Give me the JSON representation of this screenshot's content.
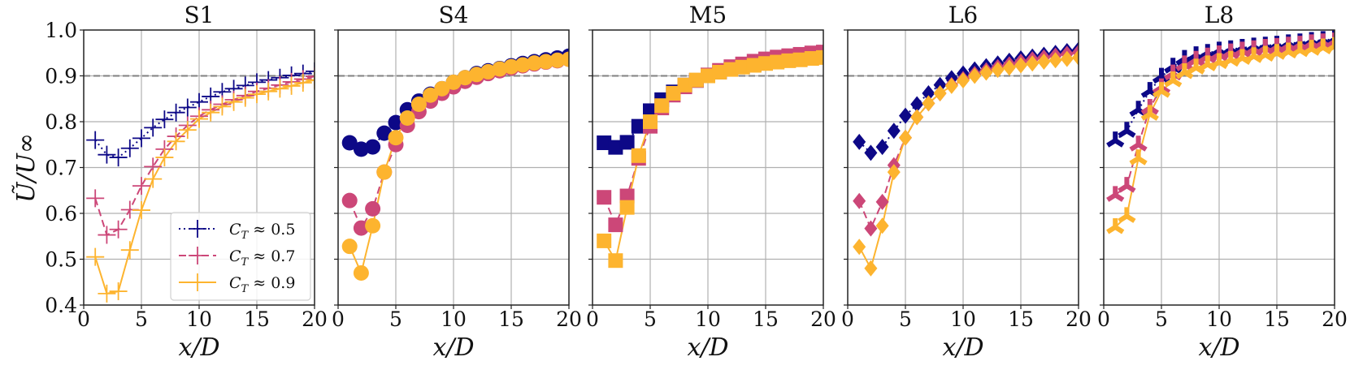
{
  "chart_data": {
    "type": "line",
    "ylabel": "Ũ/U∞",
    "xlabel": "x/D",
    "xlim": [
      0,
      20
    ],
    "ylim": [
      0.4,
      1.0
    ],
    "xticks": [
      "0",
      "5",
      "10",
      "15",
      "20"
    ],
    "yticks": [
      "0.4",
      "0.5",
      "0.6",
      "0.7",
      "0.8",
      "0.9",
      "1.0"
    ],
    "reference_line": 0.9,
    "grid": true,
    "legend": {
      "placement": "lower-right",
      "panel": "S1",
      "entries": [
        {
          "label_main": "C",
          "label_sub": "T",
          "label_rest": " ≈ 0.5",
          "color": "#0d0887",
          "style": "dotted"
        },
        {
          "label_main": "C",
          "label_sub": "T",
          "label_rest": " ≈ 0.7",
          "color": "#cc4778",
          "style": "dashed"
        },
        {
          "label_main": "C",
          "label_sub": "T",
          "label_rest": " ≈ 0.9",
          "color": "#fdb42f",
          "style": "solid"
        }
      ]
    },
    "x": [
      1,
      2,
      3,
      4,
      5,
      6,
      7,
      8,
      9,
      10,
      11,
      12,
      13,
      14,
      15,
      16,
      17,
      18,
      19,
      20
    ],
    "panels": [
      {
        "title": "S1",
        "marker": "plus",
        "series": [
          {
            "name": "C_T ≈ 0.5",
            "values": [
              0.76,
              0.728,
              0.722,
              0.742,
              0.764,
              0.787,
              0.805,
              0.82,
              0.831,
              0.843,
              0.855,
              0.865,
              0.872,
              0.879,
              0.886,
              0.891,
              0.896,
              0.901,
              0.905,
              0.91
            ]
          },
          {
            "name": "C_T ≈ 0.7",
            "values": [
              0.633,
              0.553,
              0.565,
              0.608,
              0.66,
              0.702,
              0.74,
              0.768,
              0.792,
              0.812,
              0.826,
              0.838,
              0.848,
              0.857,
              0.866,
              0.873,
              0.88,
              0.887,
              0.893,
              0.899
            ]
          },
          {
            "name": "C_T ≈ 0.9",
            "values": [
              0.505,
              0.425,
              0.43,
              0.52,
              0.607,
              0.675,
              0.722,
              0.757,
              0.782,
              0.806,
              0.82,
              0.833,
              0.843,
              0.852,
              0.86,
              0.866,
              0.872,
              0.878,
              0.885,
              0.891
            ]
          }
        ]
      },
      {
        "title": "S4",
        "marker": "circle",
        "series": [
          {
            "name": "C_T ≈ 0.5",
            "values": [
              0.754,
              0.74,
              0.745,
              0.775,
              0.798,
              0.826,
              0.845,
              0.86,
              0.872,
              0.886,
              0.896,
              0.905,
              0.911,
              0.916,
              0.922,
              0.927,
              0.931,
              0.935,
              0.939,
              0.943
            ]
          },
          {
            "name": "C_T ≈ 0.7",
            "values": [
              0.628,
              0.568,
              0.61,
              0.69,
              0.75,
              0.792,
              0.822,
              0.845,
              0.862,
              0.876,
              0.888,
              0.897,
              0.905,
              0.911,
              0.917,
              0.922,
              0.926,
              0.93,
              0.933,
              0.936
            ]
          },
          {
            "name": "C_T ≈ 0.9",
            "values": [
              0.528,
              0.47,
              0.573,
              0.69,
              0.765,
              0.808,
              0.838,
              0.858,
              0.872,
              0.886,
              0.896,
              0.903,
              0.909,
              0.915,
              0.92,
              0.924,
              0.928,
              0.931,
              0.934,
              0.936
            ]
          }
        ]
      },
      {
        "title": "M5",
        "marker": "square",
        "series": [
          {
            "name": "C_T ≈ 0.5",
            "values": [
              0.754,
              0.744,
              0.755,
              0.79,
              0.824,
              0.848,
              0.865,
              0.88,
              0.89,
              0.9,
              0.908,
              0.915,
              0.92,
              0.925,
              0.929,
              0.933,
              0.936,
              0.939,
              0.942,
              0.945
            ]
          },
          {
            "name": "C_T ≈ 0.7",
            "values": [
              0.635,
              0.575,
              0.638,
              0.72,
              0.79,
              0.83,
              0.858,
              0.876,
              0.89,
              0.902,
              0.912,
              0.92,
              0.926,
              0.932,
              0.937,
              0.941,
              0.944,
              0.947,
              0.95,
              0.952
            ]
          },
          {
            "name": "C_T ≈ 0.9",
            "values": [
              0.54,
              0.497,
              0.613,
              0.726,
              0.8,
              0.835,
              0.862,
              0.88,
              0.891,
              0.9,
              0.908,
              0.914,
              0.919,
              0.923,
              0.927,
              0.93,
              0.933,
              0.935,
              0.938,
              0.94
            ]
          }
        ]
      },
      {
        "title": "L6",
        "marker": "diamond",
        "series": [
          {
            "name": "C_T ≈ 0.5",
            "values": [
              0.756,
              0.732,
              0.745,
              0.78,
              0.813,
              0.838,
              0.862,
              0.88,
              0.895,
              0.905,
              0.914,
              0.921,
              0.927,
              0.933,
              0.938,
              0.942,
              0.946,
              0.95,
              0.954,
              0.957
            ]
          },
          {
            "name": "C_T ≈ 0.7",
            "values": [
              0.627,
              0.567,
              0.625,
              0.705,
              0.765,
              0.81,
              0.84,
              0.862,
              0.88,
              0.893,
              0.904,
              0.912,
              0.919,
              0.925,
              0.931,
              0.936,
              0.94,
              0.944,
              0.948,
              0.951
            ]
          },
          {
            "name": "C_T ≈ 0.9",
            "values": [
              0.527,
              0.48,
              0.573,
              0.69,
              0.765,
              0.81,
              0.84,
              0.862,
              0.878,
              0.89,
              0.9,
              0.907,
              0.913,
              0.918,
              0.923,
              0.927,
              0.931,
              0.934,
              0.937,
              0.94
            ]
          }
        ]
      },
      {
        "title": "L8",
        "marker": "tri-down",
        "series": [
          {
            "name": "C_T ≈ 0.5",
            "values": [
              0.759,
              0.78,
              0.826,
              0.867,
              0.898,
              0.92,
              0.937,
              0.945,
              0.95,
              0.955,
              0.958,
              0.961,
              0.964,
              0.966,
              0.968,
              0.971,
              0.973,
              0.976,
              0.978,
              0.98
            ]
          },
          {
            "name": "C_T ≈ 0.7",
            "values": [
              0.64,
              0.66,
              0.75,
              0.83,
              0.875,
              0.905,
              0.925,
              0.935,
              0.942,
              0.947,
              0.951,
              0.955,
              0.958,
              0.961,
              0.963,
              0.966,
              0.968,
              0.971,
              0.973,
              0.975
            ]
          },
          {
            "name": "C_T ≈ 0.9",
            "values": [
              0.57,
              0.594,
              0.72,
              0.817,
              0.867,
              0.89,
              0.908,
              0.918,
              0.925,
              0.93,
              0.935,
              0.939,
              0.943,
              0.946,
              0.95,
              0.953,
              0.956,
              0.959,
              0.962,
              0.965
            ]
          }
        ]
      }
    ]
  }
}
